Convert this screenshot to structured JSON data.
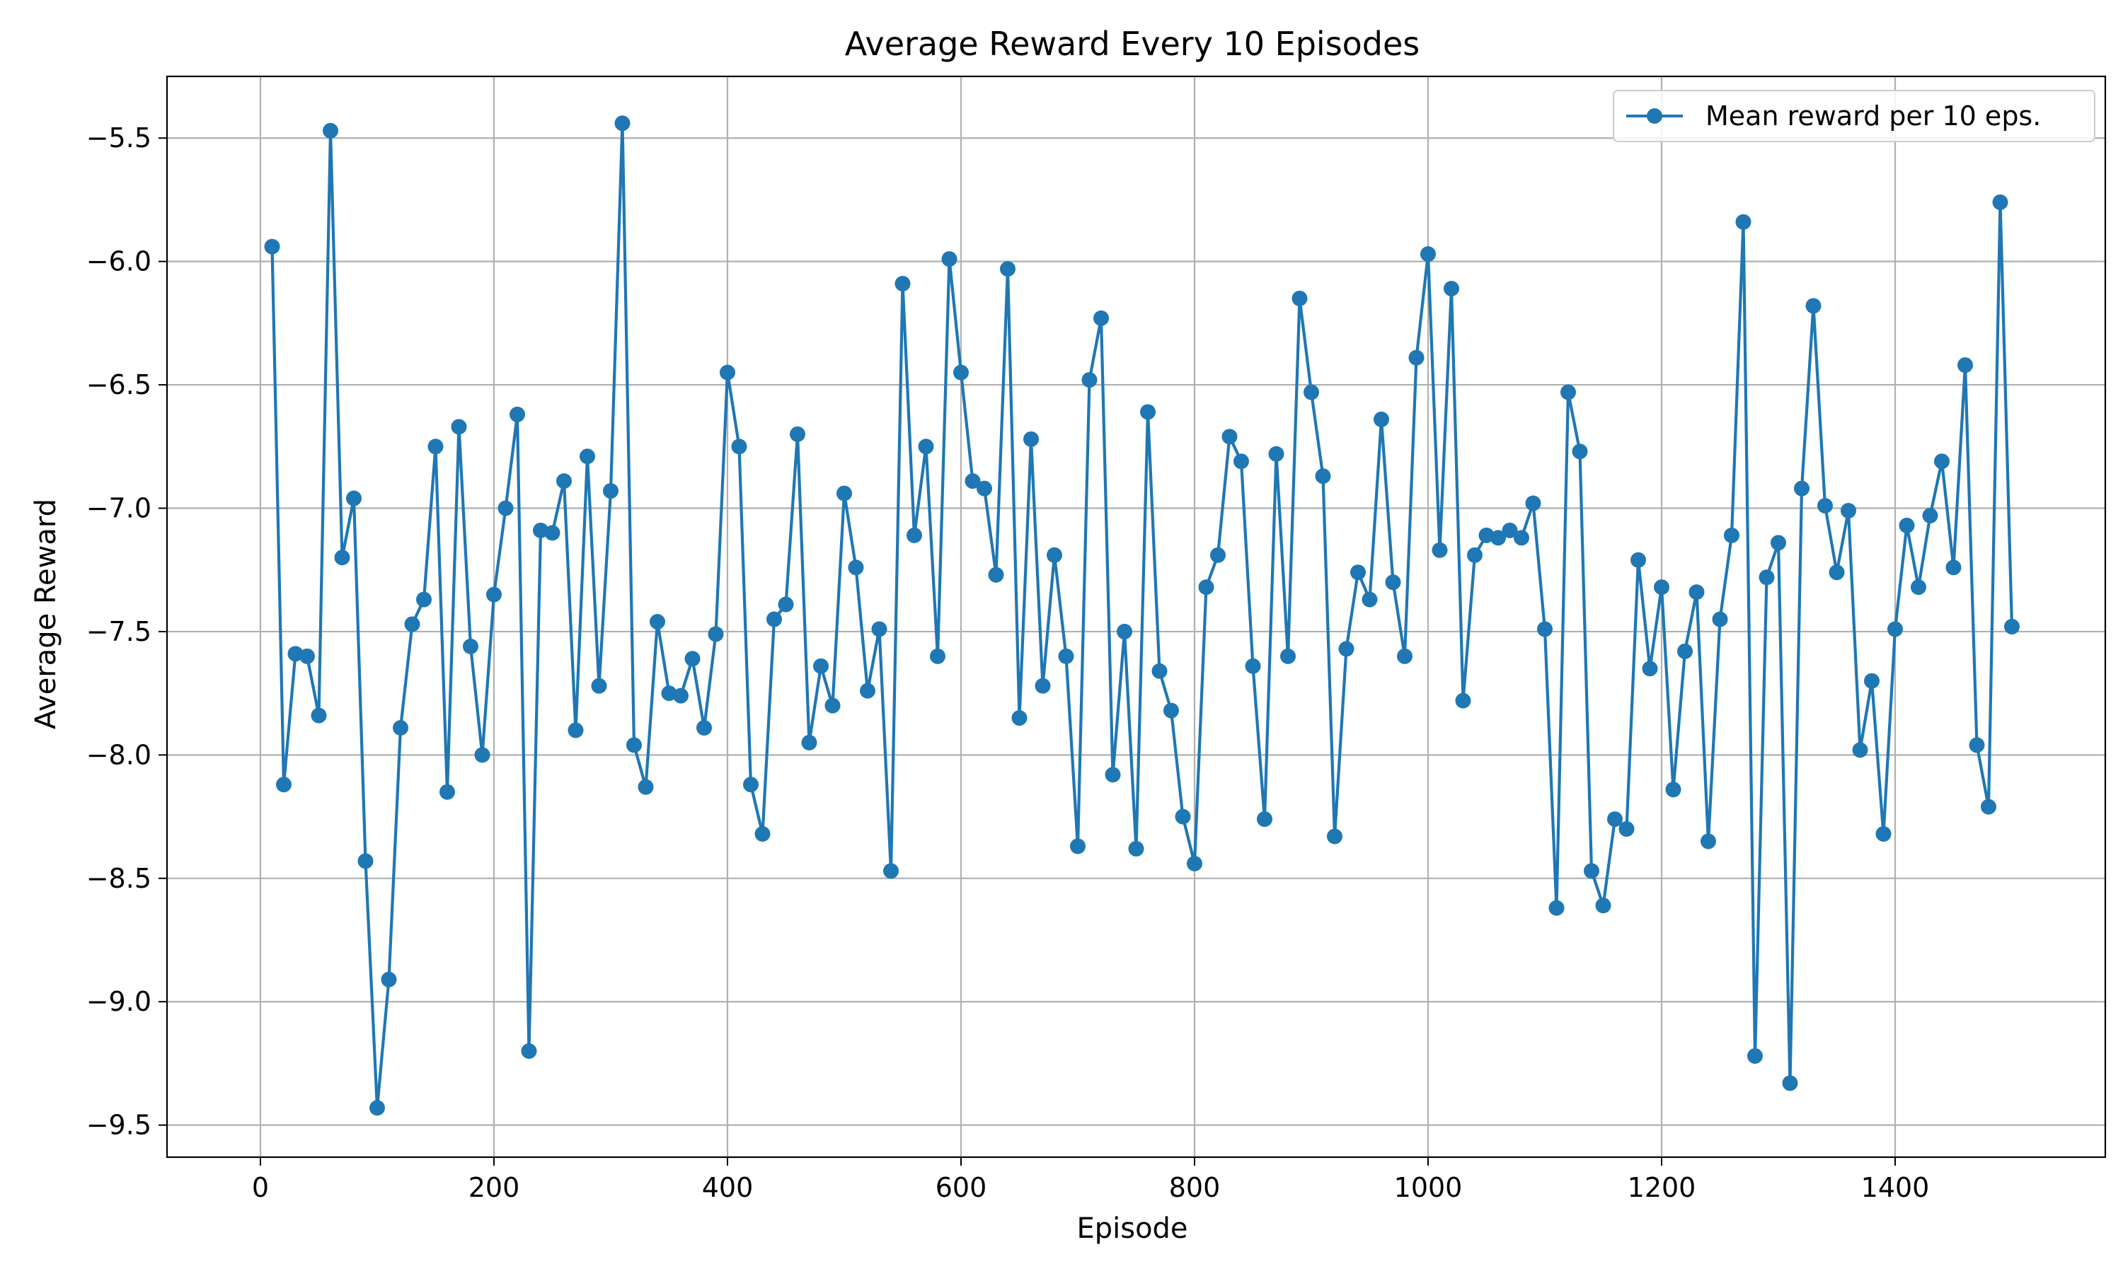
{
  "chart_data": {
    "type": "line",
    "title": "Average Reward Every 10 Episodes",
    "xlabel": "Episode",
    "ylabel": "Average Reward",
    "xlim": [
      -80,
      1580
    ],
    "ylim": [
      -9.63,
      -5.25
    ],
    "xticks": [
      0,
      200,
      400,
      600,
      800,
      1000,
      1200,
      1400
    ],
    "yticks": [
      -9.5,
      -9.0,
      -8.5,
      -8.0,
      -7.5,
      -7.0,
      -6.5,
      -6.0,
      -5.5
    ],
    "xtick_labels": [
      "0",
      "200",
      "400",
      "600",
      "800",
      "1000",
      "1200",
      "1400"
    ],
    "ytick_labels": [
      "−9.5",
      "−9.0",
      "−8.5",
      "−8.0",
      "−7.5",
      "−7.0",
      "−6.5",
      "−6.0",
      "−5.5"
    ],
    "grid": true,
    "legend_position": "top-right",
    "series": [
      {
        "name": "Mean reward per 10 eps.",
        "color": "#1f77b4",
        "marker": "circle",
        "x": [
          10,
          20,
          30,
          40,
          50,
          60,
          70,
          80,
          90,
          100,
          110,
          120,
          130,
          140,
          150,
          160,
          170,
          180,
          190,
          200,
          210,
          220,
          230,
          240,
          250,
          260,
          270,
          280,
          290,
          300,
          310,
          320,
          330,
          340,
          350,
          360,
          370,
          380,
          390,
          400,
          410,
          420,
          430,
          440,
          450,
          460,
          470,
          480,
          490,
          500,
          510,
          520,
          530,
          540,
          550,
          560,
          570,
          580,
          590,
          600,
          610,
          620,
          630,
          640,
          650,
          660,
          670,
          680,
          690,
          700,
          710,
          720,
          730,
          740,
          750,
          760,
          770,
          780,
          790,
          800,
          810,
          820,
          830,
          840,
          850,
          860,
          870,
          880,
          890,
          900,
          910,
          920,
          930,
          940,
          950,
          960,
          970,
          980,
          990,
          1000,
          1010,
          1020,
          1030,
          1040,
          1050,
          1060,
          1070,
          1080,
          1090,
          1100,
          1110,
          1120,
          1130,
          1140,
          1150,
          1160,
          1170,
          1180,
          1190,
          1200,
          1210,
          1220,
          1230,
          1240,
          1250,
          1260,
          1270,
          1280,
          1290,
          1300,
          1310,
          1320,
          1330,
          1340,
          1350,
          1360,
          1370,
          1380,
          1390,
          1400,
          1410,
          1420,
          1430,
          1440,
          1450,
          1460,
          1470,
          1480,
          1490,
          1500
        ],
        "y": [
          -5.94,
          -8.12,
          -7.59,
          -7.6,
          -7.84,
          -5.47,
          -7.2,
          -6.96,
          -8.43,
          -9.43,
          -8.91,
          -7.89,
          -7.47,
          -7.37,
          -6.75,
          -8.15,
          -6.67,
          -7.56,
          -8.0,
          -7.35,
          -7.0,
          -6.62,
          -9.2,
          -7.09,
          -7.1,
          -6.89,
          -7.9,
          -6.79,
          -7.72,
          -6.93,
          -5.44,
          -7.96,
          -8.13,
          -7.46,
          -7.75,
          -7.76,
          -7.61,
          -7.89,
          -7.51,
          -6.45,
          -6.75,
          -8.12,
          -8.32,
          -7.45,
          -7.39,
          -6.7,
          -7.95,
          -7.64,
          -7.8,
          -6.94,
          -7.24,
          -7.74,
          -7.49,
          -8.47,
          -6.09,
          -7.11,
          -6.75,
          -7.6,
          -5.99,
          -6.45,
          -6.89,
          -6.92,
          -7.27,
          -6.03,
          -7.85,
          -6.72,
          -7.72,
          -7.19,
          -7.6,
          -8.37,
          -6.48,
          -6.23,
          -8.08,
          -7.5,
          -8.38,
          -6.61,
          -7.66,
          -7.82,
          -8.25,
          -8.44,
          -7.32,
          -7.19,
          -6.71,
          -6.81,
          -7.64,
          -8.26,
          -6.78,
          -7.6,
          -6.15,
          -6.53,
          -6.87,
          -8.33,
          -7.57,
          -7.26,
          -7.37,
          -6.64,
          -7.3,
          -7.6,
          -6.39,
          -5.97,
          -7.17,
          -6.11,
          -7.78,
          -7.19,
          -7.11,
          -7.12,
          -7.09,
          -7.12,
          -6.98,
          -7.49,
          -8.62,
          -6.53,
          -6.77,
          -8.47,
          -8.61,
          -8.26,
          -8.3,
          -7.21,
          -7.65,
          -7.32,
          -8.14,
          -7.58,
          -7.34,
          -8.35,
          -7.45,
          -7.11,
          -5.84,
          -9.22,
          -7.28,
          -7.14,
          -9.33,
          -6.92,
          -6.18,
          -6.99,
          -7.26,
          -7.01,
          -7.98,
          -7.7,
          -8.32,
          -7.49,
          -7.07,
          -7.32,
          -7.03,
          -6.81,
          -7.24,
          -6.42,
          -7.96,
          -8.21,
          -5.76,
          -7.48
        ]
      }
    ]
  }
}
